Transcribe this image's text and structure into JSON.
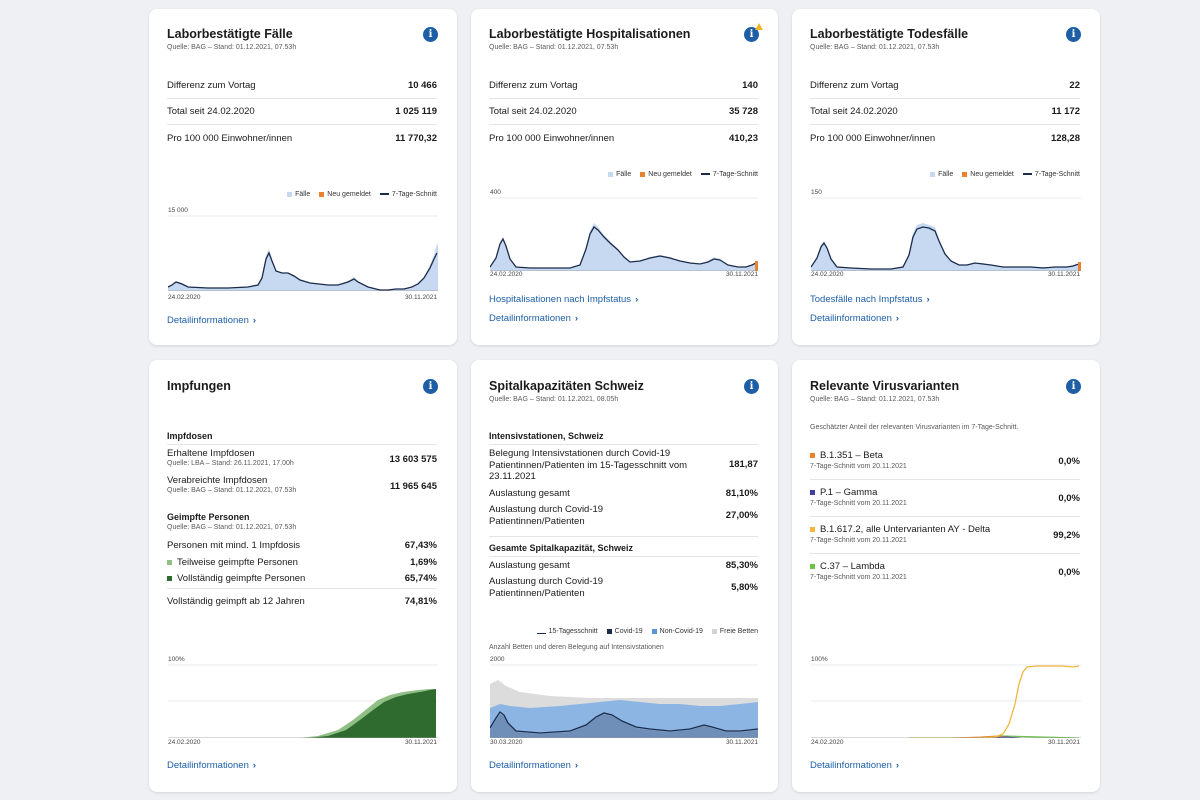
{
  "cards": {
    "cases": {
      "title": "Laborbestätigte Fälle",
      "source": "Quelle: BAG – Stand: 01.12.2021, 07.53h",
      "rows": [
        {
          "label": "Differenz zum Vortag",
          "value": "10 466"
        },
        {
          "label": "Total seit 24.02.2020",
          "value": "1 025 119"
        },
        {
          "label": "Pro 100 000 Einwohner/innen",
          "value": "11 770,32"
        }
      ],
      "legend": {
        "cases": "Fälle",
        "new": "Neu gemeldet",
        "avg": "7-Tage-Schnitt"
      },
      "ymax": "15 000",
      "x_start": "24.02.2020",
      "x_end": "30.11.2021",
      "link_detail": "Detailinformationen"
    },
    "hosp": {
      "title": "Laborbestätigte Hospitalisationen",
      "source": "Quelle: BAG – Stand: 01.12.2021, 07.53h",
      "rows": [
        {
          "label": "Differenz zum Vortag",
          "value": "140"
        },
        {
          "label": "Total seit 24.02.2020",
          "value": "35 728"
        },
        {
          "label": "Pro 100 000 Einwohner/innen",
          "value": "410,23"
        }
      ],
      "legend": {
        "cases": "Fälle",
        "new": "Neu gemeldet",
        "avg": "7-Tage-Schnitt"
      },
      "ymax": "400",
      "x_start": "24.02.2020",
      "x_end": "30.11.2021",
      "link_status": "Hospitalisationen nach Impfstatus",
      "link_detail": "Detailinformationen"
    },
    "deaths": {
      "title": "Laborbestätigte Todesfälle",
      "source": "Quelle: BAG – Stand: 01.12.2021, 07.53h",
      "rows": [
        {
          "label": "Differenz zum Vortag",
          "value": "22"
        },
        {
          "label": "Total seit 24.02.2020",
          "value": "11 172"
        },
        {
          "label": "Pro 100 000 Einwohner/innen",
          "value": "128,28"
        }
      ],
      "legend": {
        "cases": "Fälle",
        "new": "Neu gemeldet",
        "avg": "7-Tage-Schnitt"
      },
      "ymax": "150",
      "x_start": "24.02.2020",
      "x_end": "30.11.2021",
      "link_status": "Todesfälle nach Impfstatus",
      "link_detail": "Detailinformationen"
    },
    "vacc": {
      "title": "Impfungen",
      "doses_heading": "Impfdosen",
      "received_label": "Erhaltene Impfdosen",
      "received_source": "Quelle: LBA – Stand: 26.11.2021, 17.00h",
      "received_value": "13 603 575",
      "administered_label": "Verabreichte Impfdosen",
      "administered_source": "Quelle: BAG – Stand: 01.12.2021, 07.53h",
      "administered_value": "11 965 645",
      "persons_heading": "Geimpfte Personen",
      "persons_source": "Quelle: BAG – Stand: 01.12.2021, 07.53h",
      "min1_label": "Personen mit mind. 1 Impfdosis",
      "min1_value": "67,43%",
      "partial_label": "Teilweise geimpfte Personen",
      "partial_value": "1,69%",
      "full_label": "Vollständig geimpfte Personen",
      "full_value": "65,74%",
      "full12_label": "Vollständig geimpft ab 12 Jahren",
      "full12_value": "74,81%",
      "ymax": "100%",
      "x_start": "24.02.2020",
      "x_end": "30.11.2021",
      "link_detail": "Detailinformationen"
    },
    "capacity": {
      "title": "Spitalkapazitäten Schweiz",
      "source": "Quelle: BAG – Stand: 01.12.2021, 08.05h",
      "icu_heading": "Intensivstationen, Schweiz",
      "icu_covid_label": "Belegung Intensivstationen durch Covid-19 Patientinnen/Patienten im 15-Tagesschnitt vom 23.11.2021",
      "icu_covid_value": "181,87",
      "icu_total_label": "Auslastung gesamt",
      "icu_total_value": "81,10%",
      "icu_c19_label": "Auslastung durch Covid-19 Patientinnen/Patienten",
      "icu_c19_value": "27,00%",
      "all_heading": "Gesamte Spitalkapazität, Schweiz",
      "all_total_label": "Auslastung gesamt",
      "all_total_value": "85,30%",
      "all_c19_label": "Auslastung durch Covid-19 Patientinnen/Patienten",
      "all_c19_value": "5,80%",
      "legend": {
        "avg": "15-Tagesschnitt",
        "covid": "Covid-19",
        "noncovid": "Non-Covid-19",
        "free": "Freie Betten"
      },
      "chart_caption": "Anzahl Betten und deren Belegung auf Intensivstationen",
      "ymax": "2000",
      "x_start": "30.03.2020",
      "x_end": "30.11.2021",
      "link_detail": "Detailinformationen"
    },
    "variants": {
      "title": "Relevante Virusvarianten",
      "source": "Quelle: BAG – Stand: 01.12.2021, 07.53h",
      "caption": "Geschätzter Anteil der relevanten Virusvarianten im 7-Tage-Schnitt.",
      "items": [
        {
          "name": "B.1.351 – Beta",
          "date": "7-Tage-Schnitt vom 20.11.2021",
          "value": "0,0%",
          "color": "#e8822e"
        },
        {
          "name": "P.1 – Gamma",
          "date": "7-Tage-Schnitt vom 20.11.2021",
          "value": "0,0%",
          "color": "#3f3f9f"
        },
        {
          "name": "B.1.617.2, alle Untervarianten AY - Delta",
          "date": "7-Tage-Schnitt vom 20.11.2021",
          "value": "99,2%",
          "color": "#f2b73c"
        },
        {
          "name": "C.37 – Lambda",
          "date": "7-Tage-Schnitt vom 20.11.2021",
          "value": "0,0%",
          "color": "#6cc24a"
        }
      ],
      "ymax": "100%",
      "x_start": "24.02.2020",
      "x_end": "30.11.2021",
      "link_detail": "Detailinformationen"
    }
  },
  "colors": {
    "accent": "#1d5ea6",
    "bar_light": "#c6d9f0",
    "new_orange": "#e8822e",
    "avg_line": "#1b2b4b",
    "vacc_dark": "#2f6b2f",
    "vacc_light": "#8fbf84"
  }
}
